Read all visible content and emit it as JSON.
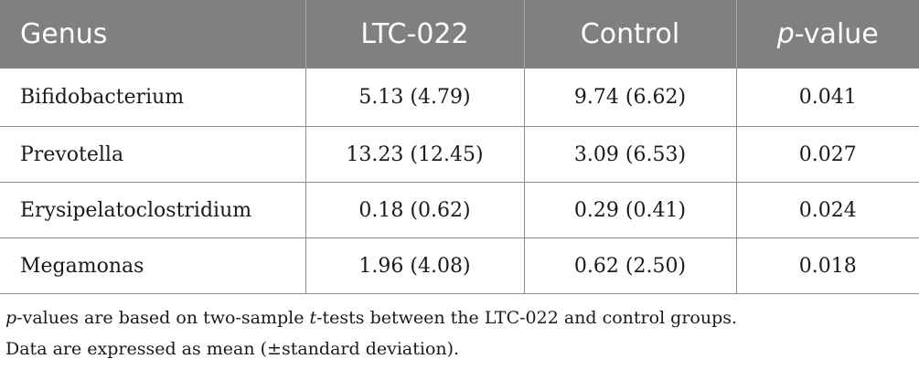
{
  "table": {
    "headers": {
      "genus": "Genus",
      "ltc": "LTC-022",
      "control": "Control",
      "pvalue_prefix": "p",
      "pvalue_suffix": "-value"
    },
    "rows": [
      {
        "genus": "Bifidobacterium",
        "ltc": "5.13 (4.79)",
        "control": "9.74 (6.62)",
        "p": "0.041"
      },
      {
        "genus": "Prevotella",
        "ltc": "13.23 (12.45)",
        "control": "3.09 (6.53)",
        "p": "0.027"
      },
      {
        "genus": "Erysipelatoclostridium",
        "ltc": "0.18 (0.62)",
        "control": "0.29 (0.41)",
        "p": "0.024"
      },
      {
        "genus": "Megamonas",
        "ltc": "1.96 (4.08)",
        "control": "0.62 (2.50)",
        "p": "0.018"
      }
    ]
  },
  "footnotes": {
    "line1_p": "p",
    "line1_a": "-values are based on two-sample ",
    "line1_t": "t",
    "line1_b": "-tests between the LTC-022 and control groups.",
    "line2": "Data are expressed as mean (±standard deviation)."
  }
}
